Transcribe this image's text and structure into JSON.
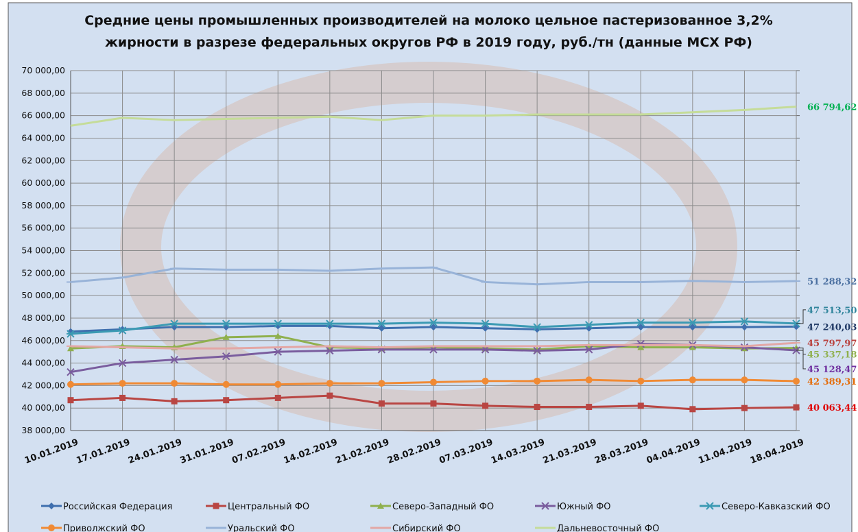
{
  "chart_data": {
    "type": "line",
    "title": "Средние цены промышленных производителей на молоко цельное пастеризованное 3,2% жирности в разрезе федеральных округов РФ в 2019 году, руб./тн (данные МСХ РФ)",
    "categories": [
      "10.01.2019",
      "17.01.2019",
      "24.01.2019",
      "31.01.2019",
      "07.02.2019",
      "14.02.2019",
      "21.02.2019",
      "28.02.2019",
      "07.03.2019",
      "14.03.2019",
      "21.03.2019",
      "28.03.2019",
      "04.04.2019",
      "11.04.2019",
      "18.04.2019"
    ],
    "ylim": [
      38000,
      70000
    ],
    "yticks": [
      {
        "value": 38000,
        "label": "38 000,00"
      },
      {
        "value": 40000,
        "label": "40 000,00"
      },
      {
        "value": 42000,
        "label": "42 000,00"
      },
      {
        "value": 44000,
        "label": "44 000,00"
      },
      {
        "value": 46000,
        "label": "46 000,00"
      },
      {
        "value": 48000,
        "label": "48 000,00"
      },
      {
        "value": 50000,
        "label": "50 000,00"
      },
      {
        "value": 52000,
        "label": "52 000,00"
      },
      {
        "value": 54000,
        "label": "54 000,00"
      },
      {
        "value": 56000,
        "label": "56 000,00"
      },
      {
        "value": 58000,
        "label": "58 000,00"
      },
      {
        "value": 60000,
        "label": "60 000,00"
      },
      {
        "value": 62000,
        "label": "62 000,00"
      },
      {
        "value": 64000,
        "label": "64 000,00"
      },
      {
        "value": 66000,
        "label": "66 000,00"
      },
      {
        "value": 68000,
        "label": "68 000,00"
      },
      {
        "value": 70000,
        "label": "70 000,00"
      }
    ],
    "grid": true,
    "legend": "bottom",
    "series": [
      {
        "name": "Российская Федерация",
        "color": "#3f6fae",
        "marker": "diamond",
        "label_color": "#1f3864",
        "values": [
          46800,
          47000,
          47200,
          47200,
          47300,
          47300,
          47100,
          47200,
          47100,
          47000,
          47100,
          47200,
          47200,
          47200,
          47240.03
        ],
        "value_labels": [
          null,
          null,
          null,
          null,
          null,
          null,
          null,
          null,
          null,
          null,
          null,
          null,
          null,
          null,
          "47 240,03"
        ]
      },
      {
        "name": "Центральный ФО",
        "color": "#b94643",
        "marker": "square",
        "label_color": "#e00000",
        "values": [
          40700,
          40900,
          40600,
          40700,
          40900,
          41100,
          40400,
          40400,
          40200,
          40100,
          40100,
          40200,
          39900,
          40000,
          40063.44
        ],
        "value_labels": [
          null,
          null,
          null,
          null,
          null,
          null,
          null,
          null,
          null,
          null,
          null,
          null,
          null,
          null,
          "40 063,44"
        ]
      },
      {
        "name": "Северо-Западный ФО",
        "color": "#8fb04d",
        "marker": "triangle",
        "label_color": "#8fb04d",
        "values": [
          45300,
          45500,
          45400,
          46300,
          46400,
          45400,
          45300,
          45400,
          45300,
          45200,
          45500,
          45400,
          45400,
          45300,
          45337.18
        ],
        "value_labels": [
          null,
          null,
          null,
          null,
          null,
          null,
          null,
          null,
          null,
          null,
          null,
          null,
          null,
          null,
          "45 337,18"
        ]
      },
      {
        "name": "Южный ФО",
        "color": "#7a5d9e",
        "marker": "x",
        "label_color": "#7030a0",
        "values": [
          43200,
          44000,
          44300,
          44600,
          45000,
          45100,
          45200,
          45200,
          45200,
          45100,
          45200,
          45700,
          45600,
          45400,
          45128.47
        ],
        "value_labels": [
          null,
          null,
          null,
          null,
          null,
          null,
          null,
          null,
          null,
          null,
          null,
          null,
          null,
          null,
          "45 128,47"
        ]
      },
      {
        "name": "Северо-Кавказский ФО",
        "color": "#3b9ab3",
        "marker": "star",
        "label_color": "#31859c",
        "values": [
          46600,
          46900,
          47500,
          47500,
          47500,
          47500,
          47500,
          47600,
          47500,
          47200,
          47400,
          47600,
          47600,
          47700,
          47513.5
        ],
        "value_labels": [
          null,
          null,
          null,
          null,
          null,
          null,
          null,
          null,
          null,
          null,
          null,
          null,
          null,
          null,
          "47 513,50"
        ]
      },
      {
        "name": "Приволжский ФО",
        "color": "#f08a34",
        "marker": "circle",
        "label_color": "#e46c0a",
        "values": [
          42100,
          42200,
          42200,
          42100,
          42100,
          42200,
          42200,
          42300,
          42400,
          42400,
          42500,
          42400,
          42500,
          42500,
          42389.31
        ],
        "value_labels": [
          null,
          null,
          null,
          null,
          null,
          null,
          null,
          null,
          null,
          null,
          null,
          null,
          null,
          null,
          "42 389,31"
        ]
      },
      {
        "name": "Уральский ФО",
        "color": "#98b3d8",
        "marker": "dash",
        "label_color": "#4a6fa0",
        "values": [
          51200,
          51600,
          52400,
          52300,
          52300,
          52200,
          52400,
          52500,
          51200,
          51000,
          51200,
          51200,
          51300,
          51200,
          51288.32
        ],
        "value_labels": [
          null,
          null,
          null,
          null,
          null,
          null,
          null,
          null,
          null,
          null,
          null,
          null,
          null,
          null,
          "51 288,32"
        ]
      },
      {
        "name": "Сибирский ФО",
        "color": "#e3a7a5",
        "marker": "dash",
        "label_color": "#b9413e",
        "values": [
          45500,
          45400,
          45300,
          45300,
          45400,
          45500,
          45400,
          45500,
          45500,
          45500,
          45600,
          45600,
          45600,
          45500,
          45797.97
        ],
        "value_labels": [
          null,
          null,
          null,
          null,
          null,
          null,
          null,
          null,
          null,
          null,
          null,
          null,
          null,
          null,
          "45 797,97"
        ]
      },
      {
        "name": "Дальневосточный ФО",
        "color": "#c5dc99",
        "marker": "none",
        "label_color": "#00b050",
        "values": [
          65100,
          65800,
          65600,
          65700,
          65800,
          65900,
          65600,
          66000,
          66000,
          66100,
          66100,
          66100,
          66300,
          66500,
          66794.62
        ],
        "value_labels": [
          null,
          null,
          null,
          null,
          null,
          null,
          null,
          null,
          null,
          null,
          null,
          null,
          null,
          null,
          "66 794,62"
        ]
      }
    ]
  }
}
